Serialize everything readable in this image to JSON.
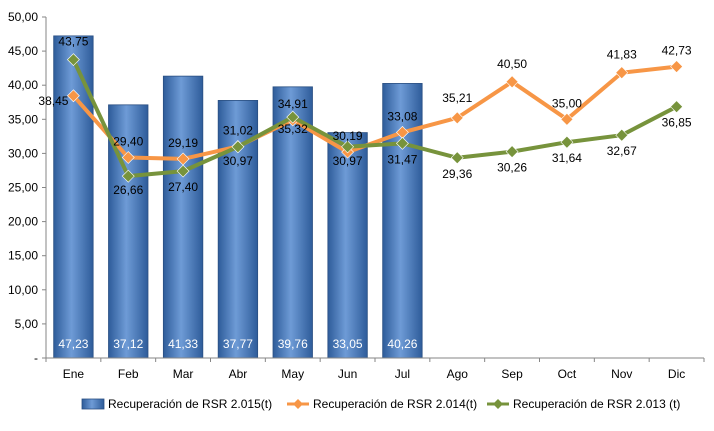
{
  "chart_data": {
    "type": "bar",
    "categories": [
      "Ene",
      "Feb",
      "Mar",
      "Abr",
      "May",
      "Jun",
      "Jul",
      "Ago",
      "Sep",
      "Oct",
      "Nov",
      "Dic"
    ],
    "ylim": [
      0,
      50
    ],
    "yticks": [
      0,
      5,
      10,
      15,
      20,
      25,
      30,
      35,
      40,
      45,
      50
    ],
    "ytick_labels": [
      "-",
      "5,00",
      "10,00",
      "15,00",
      "20,00",
      "25,00",
      "30,00",
      "35,00",
      "40,00",
      "45,00",
      "50,00"
    ],
    "grid": false,
    "legend_position": "bottom",
    "series": [
      {
        "name": "Recuperación de RSR 2.015(t)",
        "type": "bar",
        "color": "#4F81BD",
        "values": [
          47.23,
          37.12,
          41.33,
          37.77,
          39.76,
          33.05,
          40.26,
          null,
          null,
          null,
          null,
          null
        ],
        "labels": [
          "47,23",
          "37,12",
          "41,33",
          "37,77",
          "39,76",
          "33,05",
          "40,26",
          null,
          null,
          null,
          null,
          null
        ]
      },
      {
        "name": "Recuperación de RSR 2.014(t)",
        "type": "line",
        "color": "#F79646",
        "marker": "diamond",
        "values": [
          38.45,
          29.4,
          29.19,
          31.02,
          34.91,
          30.19,
          33.08,
          35.21,
          40.5,
          35.0,
          41.83,
          42.73
        ],
        "labels": [
          "38,45",
          "29,40",
          "29,19",
          "31,02",
          "34,91",
          "30,19",
          "33,08",
          "35,21",
          "40,50",
          "35,00",
          "41,83",
          "42,73"
        ]
      },
      {
        "name": "Recuperación de RSR 2.013 (t)",
        "type": "line",
        "color": "#77933C",
        "marker": "diamond",
        "values": [
          43.75,
          26.66,
          27.4,
          30.97,
          35.32,
          30.97,
          31.47,
          29.36,
          30.26,
          31.64,
          32.67,
          36.85
        ],
        "labels": [
          "43,75",
          "26,66",
          "27,40",
          "30,97",
          "35,32",
          "30,97",
          "31,47",
          "29,36",
          "30,26",
          "31,64",
          "32,67",
          "36,85"
        ]
      }
    ]
  }
}
